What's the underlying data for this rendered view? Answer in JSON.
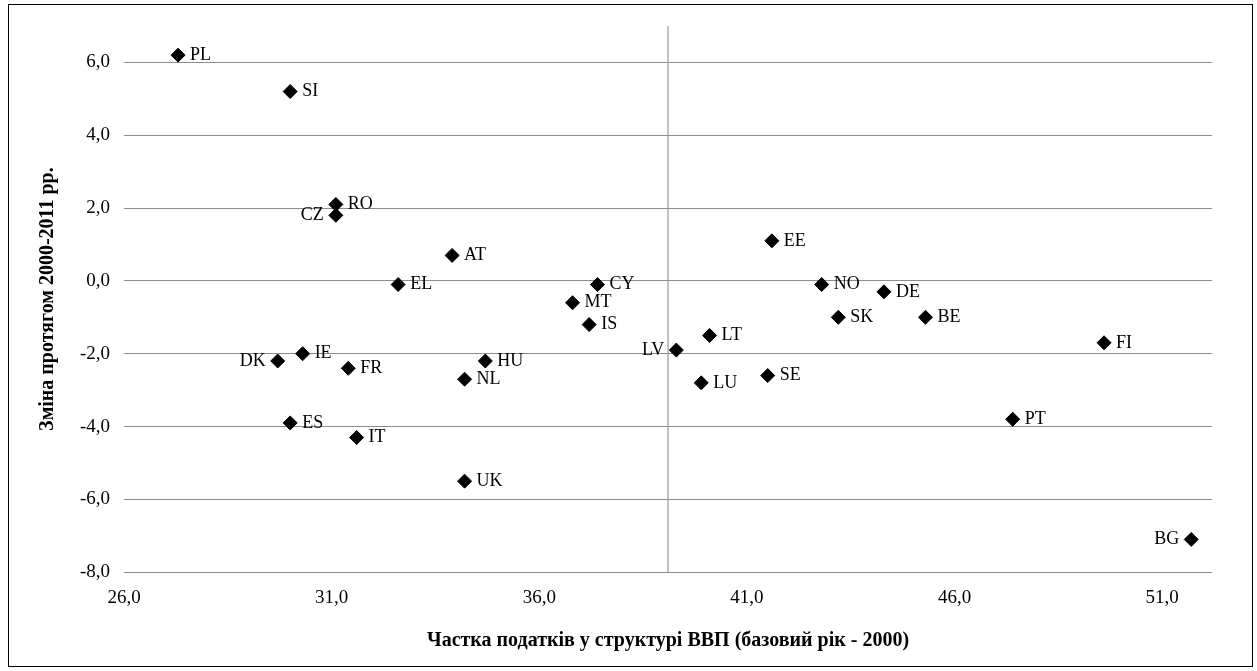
{
  "chart_data": {
    "type": "scatter",
    "xlabel": "Частка податків у структурі ВВП (базовий рік - 2000)",
    "ylabel": "Зміна протягом 2000-2011 рр.",
    "x": [
      27.3,
      30.0,
      31.1,
      31.1,
      33.9,
      32.6,
      37.4,
      36.8,
      37.2,
      29.7,
      30.3,
      31.4,
      34.2,
      34.7,
      30.0,
      31.6,
      34.2,
      39.3,
      41.6,
      42.8,
      44.3,
      43.2,
      45.3,
      40.1,
      39.9,
      41.5,
      49.6,
      47.4,
      51.7
    ],
    "series": [
      {
        "color": "#000000",
        "values": [
          6.2,
          5.2,
          2.1,
          1.8,
          0.7,
          -0.1,
          -0.1,
          -0.6,
          -1.2,
          -2.2,
          -2.0,
          -2.4,
          -2.7,
          -2.2,
          -3.9,
          -4.3,
          -5.5,
          -1.9,
          1.1,
          -0.1,
          -0.3,
          -1.0,
          -1.0,
          -1.5,
          -2.8,
          -2.6,
          -1.7,
          -3.8,
          -7.1
        ]
      }
    ],
    "annotations": [
      {
        "text": "PL",
        "x": 27.3,
        "y": 6.2
      },
      {
        "text": "SI",
        "x": 30.0,
        "y": 5.2
      },
      {
        "text": "RO",
        "x": 31.1,
        "y": 2.1
      },
      {
        "text": "CZ",
        "x": 31.1,
        "y": 1.8
      },
      {
        "text": "AT",
        "x": 33.9,
        "y": 0.7
      },
      {
        "text": "EL",
        "x": 32.6,
        "y": -0.1
      },
      {
        "text": "CY",
        "x": 37.4,
        "y": -0.1
      },
      {
        "text": "MT",
        "x": 36.8,
        "y": -0.6
      },
      {
        "text": "IS",
        "x": 37.2,
        "y": -1.2
      },
      {
        "text": "DK",
        "x": 29.7,
        "y": -2.2
      },
      {
        "text": "IE",
        "x": 30.3,
        "y": -2.0
      },
      {
        "text": "FR",
        "x": 31.4,
        "y": -2.4
      },
      {
        "text": "NL",
        "x": 34.2,
        "y": -2.7
      },
      {
        "text": "HU",
        "x": 34.7,
        "y": -2.2
      },
      {
        "text": "ES",
        "x": 30.0,
        "y": -3.9
      },
      {
        "text": "IT",
        "x": 31.6,
        "y": -4.3
      },
      {
        "text": "UK",
        "x": 34.2,
        "y": -5.5
      },
      {
        "text": "LV",
        "x": 39.3,
        "y": -1.9
      },
      {
        "text": "EE",
        "x": 41.6,
        "y": 1.1
      },
      {
        "text": "NO",
        "x": 42.8,
        "y": -0.1
      },
      {
        "text": "DE",
        "x": 44.3,
        "y": -0.3
      },
      {
        "text": "SK",
        "x": 43.2,
        "y": -1.0
      },
      {
        "text": "BE",
        "x": 45.3,
        "y": -1.0
      },
      {
        "text": "LT",
        "x": 40.1,
        "y": -1.5
      },
      {
        "text": "LU",
        "x": 39.9,
        "y": -2.8
      },
      {
        "text": "SE",
        "x": 41.5,
        "y": -2.6
      },
      {
        "text": "FI",
        "x": 49.6,
        "y": -1.7
      },
      {
        "text": "PT",
        "x": 47.4,
        "y": -3.8
      },
      {
        "text": "BG",
        "x": 51.7,
        "y": -7.1
      }
    ],
    "xlim": [
      26,
      52.2
    ],
    "xticks": [
      {
        "value": 26,
        "label": "26,0"
      },
      {
        "value": 31,
        "label": "31,0"
      },
      {
        "value": 36,
        "label": "36,0"
      },
      {
        "value": 41,
        "label": "41,0"
      },
      {
        "value": 46,
        "label": "46,0"
      },
      {
        "value": 51,
        "label": "51,0"
      }
    ],
    "ylim": [
      -8,
      7
    ],
    "yticks": [
      {
        "value": -8,
        "label": "-8,0"
      },
      {
        "value": -6,
        "label": "-6,0"
      },
      {
        "value": -4,
        "label": "-4,0"
      },
      {
        "value": -2,
        "label": "-2,0"
      },
      {
        "value": 0,
        "label": "0,0"
      },
      {
        "value": 2,
        "label": "2,0"
      },
      {
        "value": 4,
        "label": "4,0"
      },
      {
        "value": 6,
        "label": "6,0"
      }
    ],
    "ref_lines": [
      {
        "axis": "x",
        "value": 39.1,
        "color": "#999999"
      }
    ],
    "grid": "y",
    "legend": false,
    "marker": "diamond"
  }
}
